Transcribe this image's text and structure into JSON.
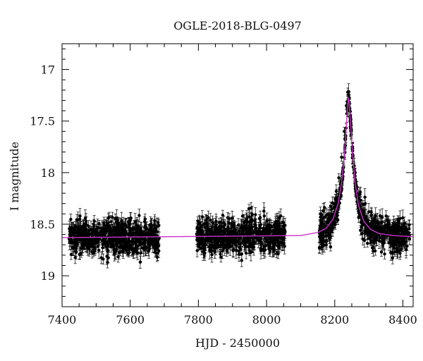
{
  "chart_data": {
    "type": "scatter",
    "title": "OGLE-2018-BLG-0497",
    "xlabel": "HJD - 2450000",
    "ylabel": "I magnitude",
    "xlim": [
      7400,
      8430
    ],
    "ylim": [
      19.3,
      16.75
    ],
    "y_inverted": true,
    "x_ticks": [
      7400,
      7600,
      7800,
      8000,
      8200,
      8400
    ],
    "y_ticks": [
      17,
      17.5,
      18,
      18.5,
      19
    ],
    "grid": false,
    "legend": "none",
    "series": [
      {
        "kind": "observations_with_error_bars",
        "color": "#000000",
        "baseline_mag": 18.63,
        "typical_scatter_mag": 0.12,
        "typical_error_mag": 0.06,
        "segments": [
          {
            "x_start": 7420,
            "x_end": 7685
          },
          {
            "x_start": 7795,
            "x_end": 8055
          },
          {
            "x_start": 8155,
            "x_end": 8420
          }
        ],
        "peak_points": [
          [
            8180,
            18.52
          ],
          [
            8195,
            18.42
          ],
          [
            8205,
            18.25
          ],
          [
            8212,
            18.05
          ],
          [
            8220,
            17.85
          ],
          [
            8228,
            17.6
          ],
          [
            8234,
            17.35
          ],
          [
            8238,
            17.22
          ],
          [
            8242,
            17.28
          ],
          [
            8246,
            17.45
          ],
          [
            8252,
            17.75
          ],
          [
            8260,
            18.0
          ],
          [
            8270,
            18.25
          ],
          [
            8285,
            18.4
          ],
          [
            8300,
            18.5
          ]
        ]
      },
      {
        "kind": "model_curve",
        "color": "#cc33cc",
        "baseline_mag": 18.63,
        "peak_x": 8240,
        "peak_mag": 17.27,
        "x": [
          7400,
          8100,
          8150,
          8175,
          8195,
          8210,
          8220,
          8228,
          8234,
          8238,
          8240,
          8242,
          8246,
          8252,
          8260,
          8270,
          8285,
          8305,
          8330,
          8370,
          8430
        ],
        "y": [
          18.63,
          18.61,
          18.58,
          18.54,
          18.45,
          18.3,
          18.1,
          17.85,
          17.55,
          17.35,
          17.27,
          17.32,
          17.5,
          17.8,
          18.1,
          18.32,
          18.47,
          18.55,
          18.59,
          18.61,
          18.62
        ]
      }
    ]
  }
}
